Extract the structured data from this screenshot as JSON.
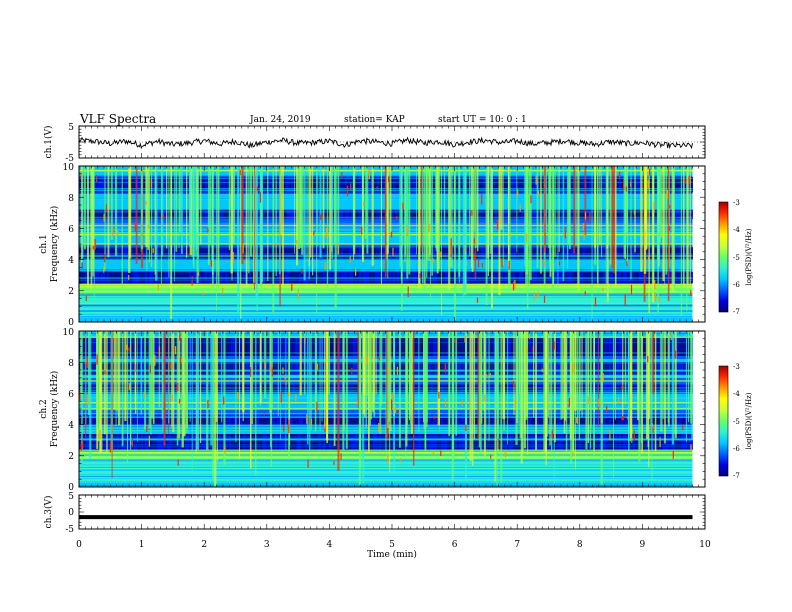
{
  "header": {
    "title": "VLF Spectra",
    "date": "Jan. 24, 2019",
    "station": "station= KAP",
    "start": "start UT =   10: 0  : 1"
  },
  "colors": {
    "waveform": "#000000",
    "colormap": [
      "#00007a",
      "#0000e0",
      "#0060ff",
      "#00c8ff",
      "#30f0d0",
      "#66ff66",
      "#c8ff3a",
      "#ffff00",
      "#ff9b00",
      "#ff2a00",
      "#a00000"
    ]
  },
  "chart_data": [
    {
      "type": "line",
      "panel": "ch1-waveform",
      "ylabel": "ch.1(V)",
      "ylim": [
        -5,
        5
      ],
      "yticks": [
        "5",
        "-5"
      ],
      "xlim": [
        0,
        10
      ],
      "series": [
        {
          "x": [
            0,
            0.25,
            0.5,
            0.75,
            1.0,
            1.25,
            1.5,
            1.75,
            2.0,
            2.25,
            2.5,
            2.75,
            3.0,
            3.25,
            3.5,
            3.75,
            4.0,
            4.25,
            4.5,
            4.75,
            5.0,
            5.25,
            5.5,
            5.75,
            6.0,
            6.25,
            6.5,
            6.75,
            7.0,
            7.25,
            7.5,
            7.75,
            8.0,
            8.25,
            8.5,
            8.75,
            9.0,
            9.25,
            9.5,
            9.8
          ],
          "values": [
            0.5,
            0.2,
            -0.5,
            0.3,
            -1.0,
            0.2,
            -0.8,
            -0.3,
            0.4,
            -0.6,
            0.2,
            -1.2,
            0.0,
            0.5,
            -0.4,
            -0.2,
            0.3,
            -0.9,
            0.4,
            0.0,
            -0.5,
            0.6,
            -0.3,
            0.2,
            -0.8,
            0.1,
            0.5,
            -0.2,
            0.3,
            -0.6,
            -0.2,
            0.4,
            -0.3,
            -0.7,
            0.1,
            -0.5,
            -0.2,
            -0.9,
            -1.1,
            -1.2
          ]
        }
      ]
    },
    {
      "type": "heatmap",
      "panel": "ch1-spectrogram",
      "ylabel": "ch.1",
      "ylabel2": "Frequency (kHz)",
      "ylim": [
        0,
        10
      ],
      "yticks": [
        "0",
        "2",
        "4",
        "6",
        "8",
        "10"
      ],
      "xlim": [
        0,
        10
      ],
      "data_extent_min": 9.8,
      "colorbar": {
        "label": "log(PSD)(V²/Hz)",
        "range": [
          -7,
          -3
        ],
        "ticks": [
          "-3",
          "-4",
          "-5",
          "-6",
          "-7"
        ]
      },
      "dark_bands_khz": [
        [
          2.5,
          3.2
        ],
        [
          4.0,
          4.8
        ],
        [
          6.6,
          7.2
        ],
        [
          8.3,
          9.3
        ]
      ],
      "bright_lines_khz": [
        1.95,
        2.25,
        2.4,
        5.0,
        5.6,
        6.2,
        9.7
      ]
    },
    {
      "type": "heatmap",
      "panel": "ch2-spectrogram",
      "ylabel": "ch.2",
      "ylabel2": "Frequency (kHz)",
      "ylim": [
        0,
        10
      ],
      "yticks": [
        "0",
        "2",
        "4",
        "6",
        "8",
        "10"
      ],
      "xlim": [
        0,
        10
      ],
      "data_extent_min": 9.8,
      "colorbar": {
        "label": "log(PSD)(V²/Hz)",
        "range": [
          -7,
          -3
        ],
        "ticks": [
          "-3",
          "-4",
          "-5",
          "-6",
          "-7"
        ]
      },
      "dark_bands_khz": [
        [
          2.4,
          3.4
        ],
        [
          4.0,
          4.6
        ],
        [
          6.0,
          6.6
        ],
        [
          7.2,
          8.0
        ],
        [
          8.4,
          9.6
        ]
      ],
      "bright_lines_khz": [
        1.9,
        2.2,
        5.0,
        5.4,
        6.8,
        9.6
      ]
    },
    {
      "type": "line",
      "panel": "ch3-waveform",
      "ylabel": "ch.3(V)",
      "ylim": [
        -5,
        5
      ],
      "yticks": [
        "5",
        "0",
        "-5"
      ],
      "xlim": [
        0,
        10
      ],
      "xlabel": "Time (min)",
      "xticks": [
        "0",
        "1",
        "2",
        "3",
        "4",
        "5",
        "6",
        "7",
        "8",
        "9",
        "10"
      ],
      "series": [
        {
          "x": [
            0,
            9.8
          ],
          "values": [
            -1.5,
            -1.5
          ]
        }
      ]
    }
  ]
}
